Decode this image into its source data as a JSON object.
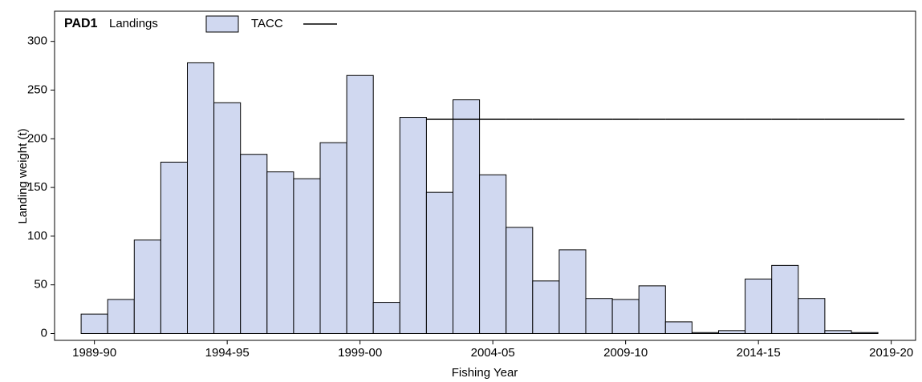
{
  "chart_data": {
    "type": "bar",
    "title": "PAD1",
    "x_label": "Fishing Year",
    "y_label": "Landing weight (t)",
    "categories": [
      "1989-90",
      null,
      null,
      null,
      null,
      "1994-95",
      null,
      null,
      null,
      null,
      "1999-00",
      null,
      null,
      null,
      null,
      "2004-05",
      null,
      null,
      null,
      null,
      "2009-10",
      null,
      null,
      null,
      null,
      "2014-15",
      null,
      null,
      null,
      null,
      "2019-20"
    ],
    "series": [
      {
        "name": "Landings",
        "color": "#d0d8f0",
        "values": [
          20,
          35,
          96,
          176,
          278,
          237,
          184,
          166,
          159,
          196,
          265,
          32,
          222,
          145,
          240,
          163,
          109,
          54,
          86,
          36,
          35,
          49,
          12,
          1,
          3,
          56,
          70,
          36,
          3,
          1,
          null
        ]
      },
      {
        "name": "TACC",
        "color": "#000000",
        "values": [
          null,
          null,
          null,
          null,
          null,
          null,
          null,
          null,
          null,
          null,
          null,
          null,
          null,
          220,
          220,
          220,
          220,
          220,
          220,
          220,
          220,
          220,
          220,
          220,
          220,
          220,
          220,
          220,
          220,
          220,
          220
        ]
      }
    ],
    "ylim": [
      -7,
      331
    ],
    "yticks": [
      0,
      50,
      100,
      150,
      200,
      250,
      300
    ],
    "legend": "top-left"
  }
}
